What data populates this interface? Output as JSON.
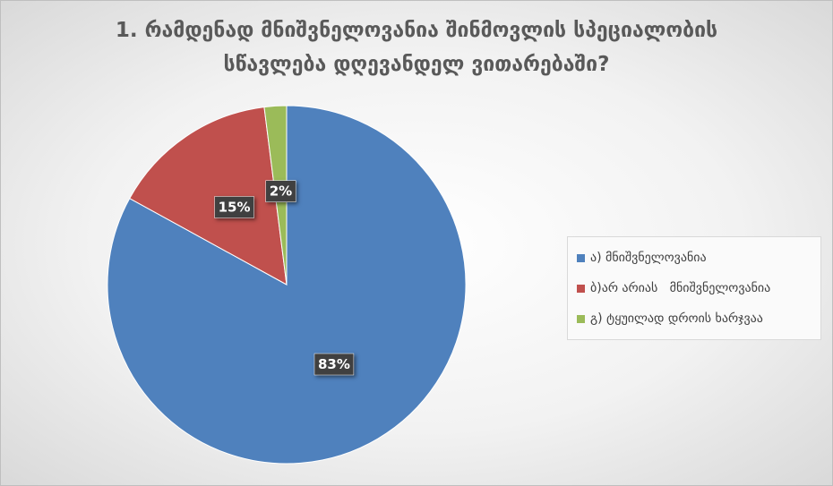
{
  "chart_data": {
    "type": "pie",
    "title": "1. რამდენად მნიშვნელოვანია შინმოვლის სპეციალობის სწავლება დღევანდელ ვითარებაში?",
    "categories": [
      "ა) მნიშვნელოვანია",
      "ბ)არ არიას   მნიშვნელოვანია",
      "გ) ტყუილად დროის ხარჯვაა"
    ],
    "values": [
      83,
      15,
      2
    ],
    "value_labels": [
      "83%",
      "15%",
      "2%"
    ],
    "colors": [
      "#4f81bd",
      "#c0504d",
      "#9bbb59"
    ],
    "legend": "right"
  }
}
